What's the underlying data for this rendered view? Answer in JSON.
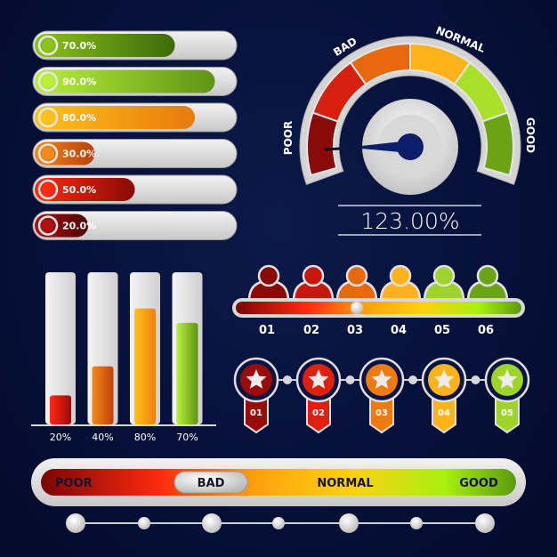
{
  "horizontal_bars": [
    {
      "label": "70.0%",
      "value": 70,
      "colors": [
        "#8cc21c",
        "#3e6a0a"
      ]
    },
    {
      "label": "90.0%",
      "value": 90,
      "colors": [
        "#b8f03a",
        "#5f9414"
      ]
    },
    {
      "label": "80.0%",
      "value": 80,
      "colors": [
        "#ffc21a",
        "#e87a0c"
      ]
    },
    {
      "label": "30.0%",
      "value": 30,
      "colors": [
        "#f08a1c",
        "#b8400c"
      ]
    },
    {
      "label": "50.0%",
      "value": 50,
      "colors": [
        "#ff2a10",
        "#8a0a06"
      ]
    },
    {
      "label": "20.0%",
      "value": 20,
      "colors": [
        "#b01010",
        "#4a0606"
      ]
    }
  ],
  "gauge": {
    "labels": {
      "poor": "POOR",
      "bad": "BAD",
      "normal": "NORMAL",
      "good": "GOOD"
    },
    "readout": "123.00%",
    "segment_colors": [
      "#8a0a08",
      "#d82010",
      "#e8680e",
      "#ffb21a",
      "#a8e02a",
      "#6aa414"
    ]
  },
  "vertical_bars": [
    {
      "label": "20%",
      "value": 20,
      "colors": [
        "#ff2a14",
        "#a00808"
      ]
    },
    {
      "label": "40%",
      "value": 40,
      "colors": [
        "#f58a1c",
        "#c0400c"
      ]
    },
    {
      "label": "80%",
      "value": 80,
      "colors": [
        "#ffc21a",
        "#ee820c"
      ]
    },
    {
      "label": "70%",
      "value": 70,
      "colors": [
        "#b8f03a",
        "#5e9414"
      ]
    }
  ],
  "people_scale": {
    "labels": [
      "01",
      "02",
      "03",
      "04",
      "05",
      "06"
    ],
    "colors": [
      "#8a0a06",
      "#c8180e",
      "#e8680e",
      "#ffb21a",
      "#9ed42a",
      "#6aa414"
    ],
    "slider_position": 3
  },
  "star_steps": {
    "labels": [
      "01",
      "02",
      "03",
      "04",
      "05"
    ],
    "colors": [
      "#9a0c0a",
      "#e0200e",
      "#ee7a10",
      "#ffb21a",
      "#9ed42a"
    ]
  },
  "rating_bar": {
    "labels": [
      "POOR",
      "BAD",
      "NORMAL",
      "GOOD"
    ],
    "selected": "BAD"
  },
  "dot_track": {
    "dots": 7
  }
}
